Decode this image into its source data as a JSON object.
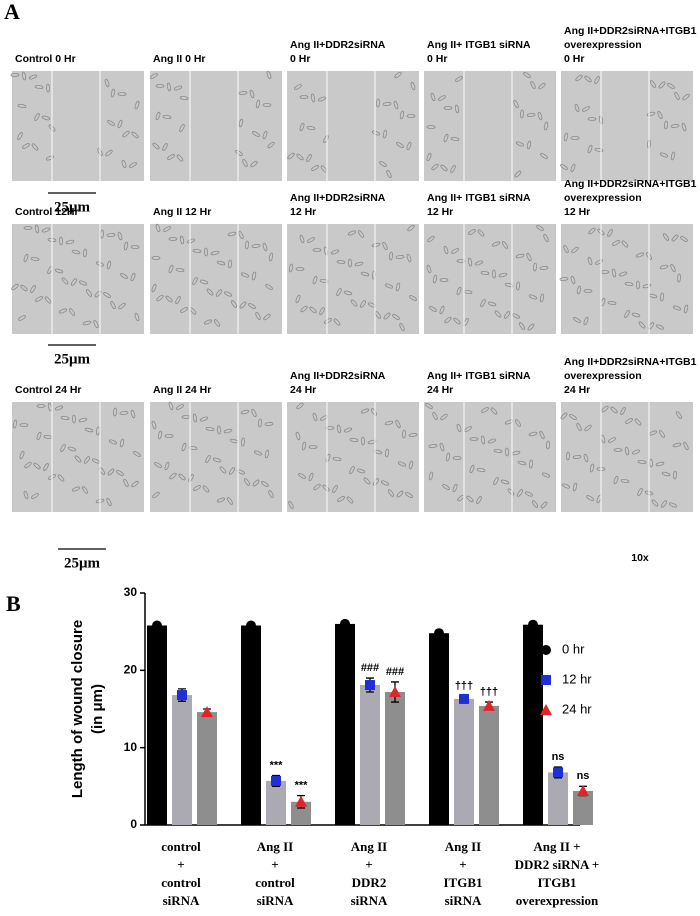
{
  "panel_a": {
    "label": "A",
    "magnification": "10x",
    "captions": [
      [
        [
          "Control 0 Hr"
        ],
        [
          "Ang II 0 Hr"
        ],
        [
          "Ang II+DDR2siRNA",
          "0 Hr"
        ],
        [
          "Ang II+ ITGB1 siRNA",
          "0 Hr"
        ],
        [
          "Ang II+DDR2siRNA+ITGB1",
          "overexpression",
          "0 Hr"
        ]
      ],
      [
        [
          "Control 12Hr"
        ],
        [
          "Ang II 12 Hr"
        ],
        [
          "Ang II+DDR2siRNA",
          "12 Hr"
        ],
        [
          "Ang II+ ITGB1 siRNA",
          "12 Hr"
        ],
        [
          "Ang II+DDR2siRNA+ITGB1",
          "overexpression",
          "12 Hr"
        ]
      ],
      [
        [
          "Control 24 Hr"
        ],
        [
          "Ang II 24 Hr"
        ],
        [
          "Ang II+DDR2siRNA",
          "24 Hr"
        ],
        [
          "Ang II+ ITGB1 siRNA",
          "24 Hr"
        ],
        [
          "Ang II+DDR2siRNA+ITGB1",
          "overexpression",
          "24 Hr"
        ]
      ]
    ],
    "scale_bars": [
      "25μm",
      "25μm",
      "25μm"
    ]
  },
  "panel_b": {
    "label": "B"
  },
  "chart_data": {
    "type": "bar",
    "y_label": [
      "Length of wound closure",
      "(in μm)"
    ],
    "categories": [
      [
        "control",
        "+",
        "control",
        "siRNA"
      ],
      [
        "Ang II",
        "+",
        "control",
        "siRNA"
      ],
      [
        "Ang II",
        "+",
        "DDR2",
        "siRNA"
      ],
      [
        "Ang II",
        "+",
        "ITGB1",
        "siRNA"
      ],
      [
        "Ang II +",
        "DDR2 siRNA +",
        "ITGB1",
        "overexpression"
      ]
    ],
    "series": [
      {
        "name": "0 hr",
        "color": "#000000",
        "marker": "circle",
        "marker_color": "#000000",
        "values": [
          25.8,
          25.8,
          26.0,
          24.8,
          25.9
        ],
        "errors": [
          0.2,
          0.2,
          0.2,
          0.2,
          0.1
        ],
        "annotations": [
          null,
          null,
          null,
          null,
          null
        ]
      },
      {
        "name": "12 hr",
        "color": "#abaab2",
        "marker": "square",
        "marker_color": "#1f2fd6",
        "values": [
          16.8,
          5.7,
          18.1,
          16.3,
          6.8
        ],
        "errors": [
          0.8,
          0.7,
          0.9,
          0.4,
          0.7
        ],
        "annotations": [
          null,
          "***",
          "###",
          "†††",
          "ns"
        ]
      },
      {
        "name": "24 hr",
        "color": "#8e8e8e",
        "marker": "triangle",
        "marker_color": "#e0242a",
        "values": [
          14.6,
          3.0,
          17.2,
          15.4,
          4.4
        ],
        "errors": [
          0.4,
          0.8,
          1.3,
          0.5,
          0.6
        ],
        "annotations": [
          null,
          "***",
          "###",
          "†††",
          "ns"
        ]
      }
    ],
    "ylim": [
      0,
      30
    ],
    "yticks": [
      0,
      10,
      20,
      30
    ],
    "grid": false,
    "legend": "right"
  }
}
